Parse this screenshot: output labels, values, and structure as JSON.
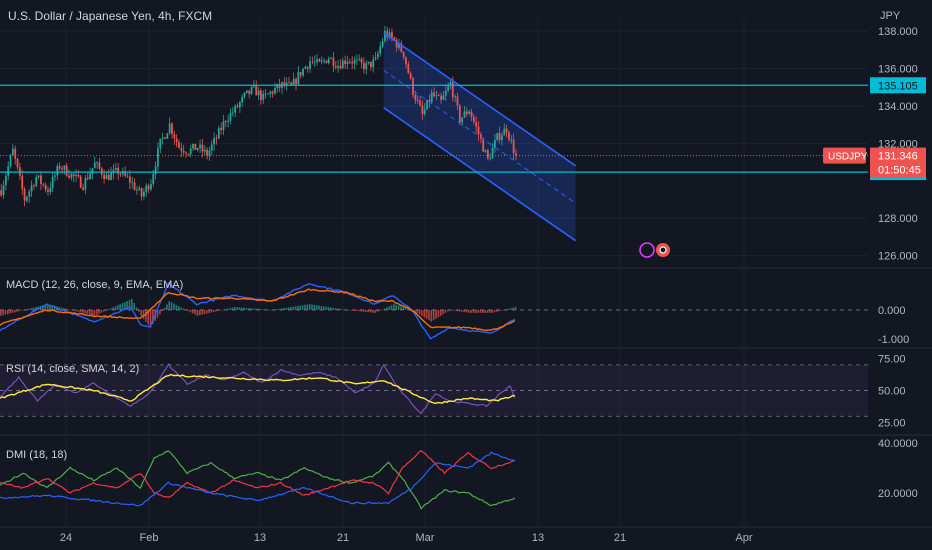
{
  "header": {
    "symbol_title": "U.S. Dollar / Japanese Yen, 4h, FXCM",
    "currency": "JPY"
  },
  "colors": {
    "background": "#131722",
    "up": "#26a69a",
    "down": "#ef5350",
    "channel": "#2962ff",
    "level_line": "#00bcd4",
    "macd": "#2962ff",
    "signal": "#ff6d00",
    "rsi": "#7e57c2",
    "rsi_ma": "#ffeb3b",
    "di_plus": "#4caf50",
    "di_minus": "#f23645",
    "adx": "#2962ff",
    "axis_text": "#b2b5be"
  },
  "chart_data": [
    {
      "type": "candlestick",
      "pane": "price",
      "symbol": "USDJPY",
      "title": "U.S. Dollar / Japanese Yen, 4h, FXCM",
      "ylim": [
        125.5,
        138.7
      ],
      "y_ticks": [
        "138.000",
        "136.000",
        "134.000",
        "132.000",
        "128.000",
        "126.000"
      ],
      "x_ticks": [
        "24",
        "Feb",
        "13",
        "21",
        "Mar",
        "13",
        "21",
        "Apr"
      ],
      "path": [
        [
          0,
          129.5
        ],
        [
          5,
          131.6
        ],
        [
          10,
          129.0
        ],
        [
          15,
          130.2
        ],
        [
          20,
          129.5
        ],
        [
          25,
          130.8
        ],
        [
          30,
          130.3
        ],
        [
          35,
          129.8
        ],
        [
          40,
          130.9
        ],
        [
          45,
          130.2
        ],
        [
          50,
          130.5
        ],
        [
          55,
          130.0
        ],
        [
          60,
          129.2
        ],
        [
          64,
          130.0
        ],
        [
          68,
          132.0
        ],
        [
          72,
          133.0
        ],
        [
          76,
          131.8
        ],
        [
          80,
          131.6
        ],
        [
          84,
          131.8
        ],
        [
          88,
          131.4
        ],
        [
          92,
          132.3
        ],
        [
          96,
          133.3
        ],
        [
          100,
          133.8
        ],
        [
          104,
          134.5
        ],
        [
          108,
          134.9
        ],
        [
          112,
          134.4
        ],
        [
          116,
          134.8
        ],
        [
          120,
          135.1
        ],
        [
          124,
          135.0
        ],
        [
          128,
          135.8
        ],
        [
          132,
          136.4
        ],
        [
          136,
          136.2
        ],
        [
          140,
          136.6
        ],
        [
          144,
          136.2
        ],
        [
          148,
          136.5
        ],
        [
          152,
          136.3
        ],
        [
          156,
          136.1
        ],
        [
          160,
          136.4
        ],
        [
          164,
          137.9
        ],
        [
          168,
          137.5
        ],
        [
          172,
          136.8
        ],
        [
          176,
          134.8
        ],
        [
          180,
          133.5
        ],
        [
          184,
          134.6
        ],
        [
          188,
          134.2
        ],
        [
          192,
          135.2
        ],
        [
          196,
          133.3
        ],
        [
          200,
          133.8
        ],
        [
          204,
          132.5
        ],
        [
          208,
          131.1
        ],
        [
          212,
          132.3
        ],
        [
          216,
          132.8
        ],
        [
          220,
          131.3
        ]
      ],
      "levels": [
        {
          "name": "resistance",
          "value": 135.105,
          "label": "135.105"
        },
        {
          "name": "support",
          "value": 130.465,
          "label": "130.465"
        }
      ],
      "last_price": {
        "symbol": "USDJPY",
        "value": 131.346,
        "label": "131.346",
        "countdown": "01:50:45"
      },
      "channel": {
        "start": {
          "bar": 164,
          "upper": 137.9,
          "lower": 133.9
        },
        "end": {
          "bar": 246,
          "upper": 130.8,
          "lower": 126.8
        }
      },
      "annotations": [
        "channel",
        "resistance",
        "support",
        "last-price"
      ]
    },
    {
      "type": "line",
      "pane": "macd",
      "title": "MACD (12, 26, close, 9, EMA, EMA)",
      "ylim": [
        -1.2,
        1.3
      ],
      "y_ticks": [
        "0.000",
        "-1.000"
      ],
      "series": [
        {
          "name": "MACD",
          "path": [
            [
              0,
              -0.7
            ],
            [
              20,
              0.2
            ],
            [
              40,
              -0.4
            ],
            [
              56,
              0.1
            ],
            [
              60,
              -0.5
            ],
            [
              64,
              -0.6
            ],
            [
              72,
              0.9
            ],
            [
              84,
              0.2
            ],
            [
              100,
              0.5
            ],
            [
              116,
              0.3
            ],
            [
              132,
              0.9
            ],
            [
              148,
              0.6
            ],
            [
              160,
              0.2
            ],
            [
              168,
              0.5
            ],
            [
              176,
              0.0
            ],
            [
              184,
              -1.0
            ],
            [
              192,
              -0.6
            ],
            [
              200,
              -0.7
            ],
            [
              210,
              -0.8
            ],
            [
              220,
              -0.3
            ]
          ]
        },
        {
          "name": "Signal",
          "path": [
            [
              0,
              -0.5
            ],
            [
              20,
              0.0
            ],
            [
              40,
              -0.2
            ],
            [
              60,
              -0.3
            ],
            [
              72,
              0.6
            ],
            [
              84,
              0.4
            ],
            [
              100,
              0.4
            ],
            [
              116,
              0.3
            ],
            [
              132,
              0.7
            ],
            [
              148,
              0.6
            ],
            [
              160,
              0.3
            ],
            [
              168,
              0.3
            ],
            [
              176,
              0.0
            ],
            [
              184,
              -0.6
            ],
            [
              192,
              -0.6
            ],
            [
              200,
              -0.6
            ],
            [
              210,
              -0.7
            ],
            [
              220,
              -0.4
            ]
          ]
        }
      ]
    },
    {
      "type": "line",
      "pane": "rsi",
      "title": "RSI (14, close, SMA, 14, 2)",
      "ylim": [
        17,
        80
      ],
      "y_ticks": [
        "75.00",
        "50.00",
        "25.00"
      ],
      "bands": [
        70,
        50,
        30
      ],
      "series": [
        {
          "name": "RSI",
          "path": [
            [
              0,
              45
            ],
            [
              8,
              60
            ],
            [
              16,
              42
            ],
            [
              24,
              55
            ],
            [
              32,
              48
            ],
            [
              40,
              56
            ],
            [
              48,
              46
            ],
            [
              56,
              38
            ],
            [
              64,
              48
            ],
            [
              72,
              70
            ],
            [
              80,
              55
            ],
            [
              88,
              62
            ],
            [
              96,
              58
            ],
            [
              104,
              64
            ],
            [
              112,
              56
            ],
            [
              120,
              66
            ],
            [
              128,
              62
            ],
            [
              136,
              64
            ],
            [
              144,
              60
            ],
            [
              152,
              48
            ],
            [
              160,
              56
            ],
            [
              164,
              70
            ],
            [
              170,
              52
            ],
            [
              176,
              40
            ],
            [
              180,
              32
            ],
            [
              186,
              48
            ],
            [
              192,
              42
            ],
            [
              200,
              40
            ],
            [
              208,
              38
            ],
            [
              214,
              48
            ],
            [
              218,
              54
            ],
            [
              220,
              44
            ]
          ]
        },
        {
          "name": "RSI-based MA",
          "path": [
            [
              0,
              44
            ],
            [
              20,
              55
            ],
            [
              40,
              50
            ],
            [
              56,
              42
            ],
            [
              72,
              62
            ],
            [
              96,
              60
            ],
            [
              120,
              58
            ],
            [
              136,
              60
            ],
            [
              152,
              55
            ],
            [
              164,
              58
            ],
            [
              176,
              48
            ],
            [
              186,
              40
            ],
            [
              200,
              44
            ],
            [
              212,
              42
            ],
            [
              220,
              46
            ]
          ]
        }
      ]
    },
    {
      "type": "line",
      "pane": "dmi",
      "title": "DMI (18, 18)",
      "ylim": [
        8,
        42
      ],
      "y_ticks": [
        "40.0000",
        "20.0000"
      ],
      "series": [
        {
          "name": "+DI",
          "path": [
            [
              0,
              23
            ],
            [
              10,
              28
            ],
            [
              20,
              22
            ],
            [
              30,
              30
            ],
            [
              40,
              25
            ],
            [
              50,
              30
            ],
            [
              60,
              22
            ],
            [
              66,
              34
            ],
            [
              72,
              37
            ],
            [
              80,
              28
            ],
            [
              90,
              32
            ],
            [
              100,
              26
            ],
            [
              110,
              28
            ],
            [
              120,
              25
            ],
            [
              130,
              30
            ],
            [
              140,
              26
            ],
            [
              150,
              24
            ],
            [
              160,
              27
            ],
            [
              166,
              32
            ],
            [
              172,
              26
            ],
            [
              180,
              14
            ],
            [
              190,
              21
            ],
            [
              200,
              20
            ],
            [
              210,
              15
            ],
            [
              220,
              18
            ]
          ]
        },
        {
          "name": "-DI",
          "path": [
            [
              0,
              24
            ],
            [
              10,
              22
            ],
            [
              20,
              26
            ],
            [
              30,
              20
            ],
            [
              40,
              24
            ],
            [
              50,
              22
            ],
            [
              60,
              28
            ],
            [
              66,
              20
            ],
            [
              72,
              18
            ],
            [
              80,
              24
            ],
            [
              90,
              20
            ],
            [
              100,
              25
            ],
            [
              110,
              22
            ],
            [
              120,
              24
            ],
            [
              130,
              19
            ],
            [
              140,
              22
            ],
            [
              150,
              25
            ],
            [
              160,
              24
            ],
            [
              166,
              20
            ],
            [
              172,
              30
            ],
            [
              180,
              37
            ],
            [
              190,
              28
            ],
            [
              200,
              36
            ],
            [
              210,
              30
            ],
            [
              220,
              33
            ]
          ]
        },
        {
          "name": "ADX",
          "path": [
            [
              0,
              18
            ],
            [
              20,
              19
            ],
            [
              40,
              17
            ],
            [
              60,
              15
            ],
            [
              72,
              24
            ],
            [
              90,
              20
            ],
            [
              110,
              17
            ],
            [
              130,
              22
            ],
            [
              150,
              16
            ],
            [
              166,
              16
            ],
            [
              176,
              22
            ],
            [
              186,
              32
            ],
            [
              200,
              30
            ],
            [
              210,
              36
            ],
            [
              220,
              33
            ]
          ]
        }
      ]
    }
  ]
}
